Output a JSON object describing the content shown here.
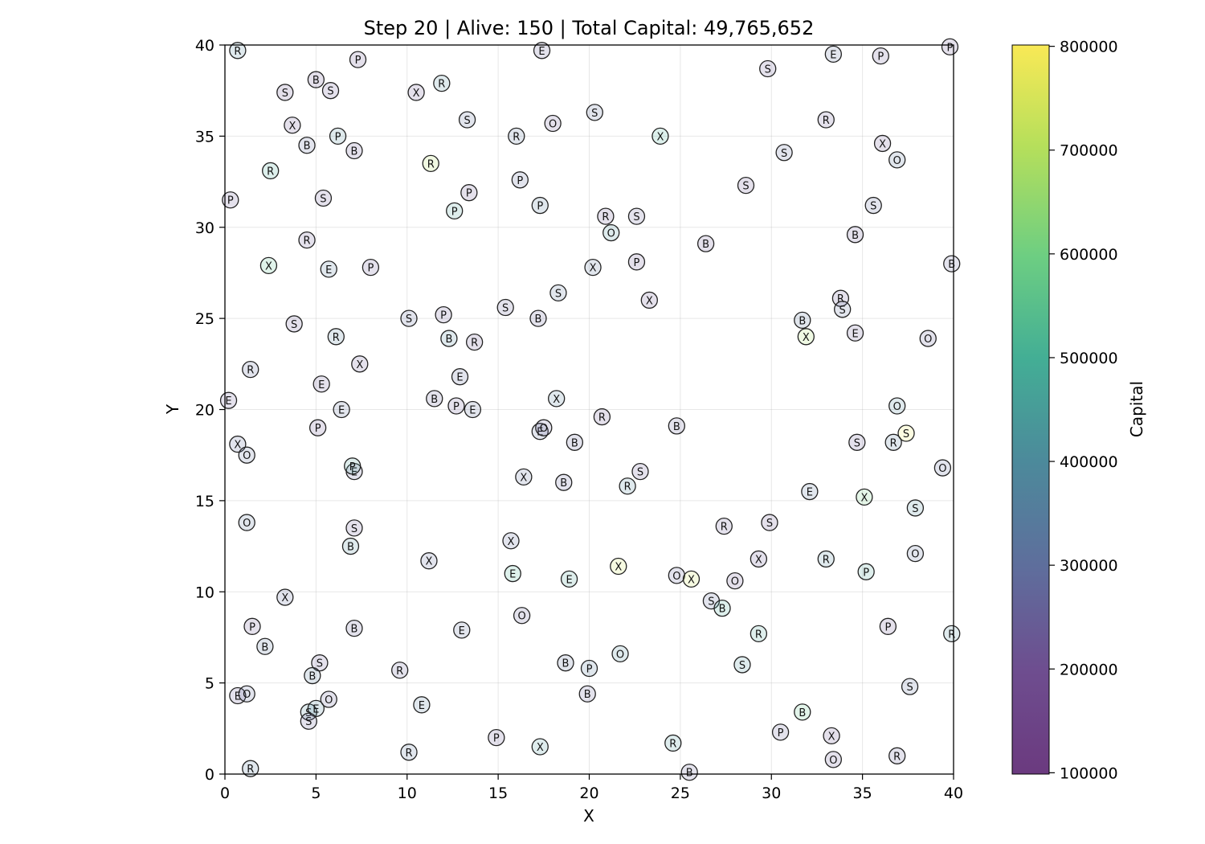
{
  "chart_data": {
    "type": "scatter",
    "title": "Step 20 | Alive: 150 | Total Capital: 49,765,652",
    "xlabel": "X",
    "ylabel": "Y",
    "xlim": [
      0,
      40
    ],
    "ylim": [
      0,
      40
    ],
    "x_ticks": [
      "0",
      "5",
      "10",
      "15",
      "20",
      "25",
      "30",
      "35",
      "40"
    ],
    "y_ticks": [
      "0",
      "5",
      "10",
      "15",
      "20",
      "25",
      "30",
      "35",
      "40"
    ],
    "grid": true,
    "colorbar": {
      "label": "Capital",
      "colormap": "viridis",
      "range": [
        100000,
        800000
      ],
      "ticks": [
        "100000",
        "200000",
        "300000",
        "400000",
        "500000",
        "600000",
        "700000",
        "800000"
      ]
    },
    "points": [
      {
        "x": 0.7,
        "y": 39.7,
        "label": "R",
        "capital": 390000
      },
      {
        "x": 7.3,
        "y": 39.2,
        "label": "P",
        "capital": 220000
      },
      {
        "x": 5.0,
        "y": 38.1,
        "label": "B",
        "capital": 220000
      },
      {
        "x": 5.8,
        "y": 37.5,
        "label": "S",
        "capital": 240000
      },
      {
        "x": 3.3,
        "y": 37.4,
        "label": "S",
        "capital": 210000
      },
      {
        "x": 10.5,
        "y": 37.4,
        "label": "X",
        "capital": 210000
      },
      {
        "x": 11.9,
        "y": 37.9,
        "label": "R",
        "capital": 400000
      },
      {
        "x": 17.4,
        "y": 39.7,
        "label": "E",
        "capital": 250000
      },
      {
        "x": 36.0,
        "y": 39.4,
        "label": "P",
        "capital": 230000
      },
      {
        "x": 33.4,
        "y": 39.5,
        "label": "E",
        "capital": 300000
      },
      {
        "x": 29.8,
        "y": 38.7,
        "label": "S",
        "capital": 230000
      },
      {
        "x": 39.8,
        "y": 39.9,
        "label": "P",
        "capital": 220000
      },
      {
        "x": 3.7,
        "y": 35.6,
        "label": "X",
        "capital": 220000
      },
      {
        "x": 4.5,
        "y": 34.5,
        "label": "B",
        "capital": 280000
      },
      {
        "x": 6.2,
        "y": 35.0,
        "label": "P",
        "capital": 400000
      },
      {
        "x": 7.1,
        "y": 34.2,
        "label": "B",
        "capital": 240000
      },
      {
        "x": 13.3,
        "y": 35.9,
        "label": "S",
        "capital": 300000
      },
      {
        "x": 16.0,
        "y": 35.0,
        "label": "R",
        "capital": 330000
      },
      {
        "x": 18.0,
        "y": 35.7,
        "label": "O",
        "capital": 230000
      },
      {
        "x": 20.3,
        "y": 36.3,
        "label": "S",
        "capital": 300000
      },
      {
        "x": 23.9,
        "y": 35.0,
        "label": "X",
        "capital": 500000
      },
      {
        "x": 33.0,
        "y": 35.9,
        "label": "R",
        "capital": 230000
      },
      {
        "x": 36.1,
        "y": 34.6,
        "label": "X",
        "capital": 220000
      },
      {
        "x": 36.9,
        "y": 33.7,
        "label": "O",
        "capital": 330000
      },
      {
        "x": 30.7,
        "y": 34.1,
        "label": "S",
        "capital": 280000
      },
      {
        "x": 2.5,
        "y": 33.1,
        "label": "R",
        "capital": 480000
      },
      {
        "x": 11.3,
        "y": 33.5,
        "label": "R",
        "capital": 700000
      },
      {
        "x": 0.3,
        "y": 31.5,
        "label": "P",
        "capital": 230000
      },
      {
        "x": 5.4,
        "y": 31.6,
        "label": "S",
        "capital": 240000
      },
      {
        "x": 13.4,
        "y": 31.9,
        "label": "P",
        "capital": 220000
      },
      {
        "x": 12.6,
        "y": 30.9,
        "label": "P",
        "capital": 450000
      },
      {
        "x": 16.2,
        "y": 32.6,
        "label": "P",
        "capital": 280000
      },
      {
        "x": 17.3,
        "y": 31.2,
        "label": "P",
        "capital": 350000
      },
      {
        "x": 28.6,
        "y": 32.3,
        "label": "S",
        "capital": 220000
      },
      {
        "x": 35.6,
        "y": 31.2,
        "label": "S",
        "capital": 280000
      },
      {
        "x": 20.9,
        "y": 30.6,
        "label": "R",
        "capital": 220000
      },
      {
        "x": 22.6,
        "y": 30.6,
        "label": "S",
        "capital": 250000
      },
      {
        "x": 21.2,
        "y": 29.7,
        "label": "O",
        "capital": 420000
      },
      {
        "x": 4.5,
        "y": 29.3,
        "label": "R",
        "capital": 230000
      },
      {
        "x": 26.4,
        "y": 29.1,
        "label": "B",
        "capital": 210000
      },
      {
        "x": 34.6,
        "y": 29.6,
        "label": "B",
        "capital": 240000
      },
      {
        "x": 39.9,
        "y": 28.0,
        "label": "B",
        "capital": 270000
      },
      {
        "x": 2.4,
        "y": 27.9,
        "label": "X",
        "capital": 540000
      },
      {
        "x": 5.7,
        "y": 27.7,
        "label": "E",
        "capital": 350000
      },
      {
        "x": 8.0,
        "y": 27.8,
        "label": "P",
        "capital": 240000
      },
      {
        "x": 20.2,
        "y": 27.8,
        "label": "X",
        "capital": 330000
      },
      {
        "x": 22.6,
        "y": 28.1,
        "label": "P",
        "capital": 220000
      },
      {
        "x": 18.3,
        "y": 26.4,
        "label": "S",
        "capital": 320000
      },
      {
        "x": 23.3,
        "y": 26.0,
        "label": "X",
        "capital": 220000
      },
      {
        "x": 15.4,
        "y": 25.6,
        "label": "S",
        "capital": 250000
      },
      {
        "x": 17.2,
        "y": 25.0,
        "label": "B",
        "capital": 260000
      },
      {
        "x": 10.1,
        "y": 25.0,
        "label": "S",
        "capital": 280000
      },
      {
        "x": 12.0,
        "y": 25.2,
        "label": "P",
        "capital": 230000
      },
      {
        "x": 3.8,
        "y": 24.7,
        "label": "S",
        "capital": 230000
      },
      {
        "x": 6.1,
        "y": 24.0,
        "label": "R",
        "capital": 370000
      },
      {
        "x": 12.3,
        "y": 23.9,
        "label": "B",
        "capital": 390000
      },
      {
        "x": 13.7,
        "y": 23.7,
        "label": "R",
        "capital": 210000
      },
      {
        "x": 33.8,
        "y": 26.1,
        "label": "R",
        "capital": 240000
      },
      {
        "x": 33.9,
        "y": 25.5,
        "label": "S",
        "capital": 300000
      },
      {
        "x": 31.7,
        "y": 24.9,
        "label": "B",
        "capital": 320000
      },
      {
        "x": 31.9,
        "y": 24.0,
        "label": "X",
        "capital": 680000
      },
      {
        "x": 34.6,
        "y": 24.2,
        "label": "E",
        "capital": 230000
      },
      {
        "x": 38.6,
        "y": 23.9,
        "label": "O",
        "capital": 260000
      },
      {
        "x": 1.4,
        "y": 22.2,
        "label": "R",
        "capital": 280000
      },
      {
        "x": 7.4,
        "y": 22.5,
        "label": "X",
        "capital": 230000
      },
      {
        "x": 5.3,
        "y": 21.4,
        "label": "E",
        "capital": 230000
      },
      {
        "x": 12.9,
        "y": 21.8,
        "label": "E",
        "capital": 280000
      },
      {
        "x": 0.2,
        "y": 20.5,
        "label": "E",
        "capital": 230000
      },
      {
        "x": 6.4,
        "y": 20.0,
        "label": "E",
        "capital": 300000
      },
      {
        "x": 11.5,
        "y": 20.6,
        "label": "B",
        "capital": 250000
      },
      {
        "x": 12.7,
        "y": 20.2,
        "label": "P",
        "capital": 230000
      },
      {
        "x": 13.6,
        "y": 20.0,
        "label": "E",
        "capital": 300000
      },
      {
        "x": 18.2,
        "y": 20.6,
        "label": "X",
        "capital": 360000
      },
      {
        "x": 20.7,
        "y": 19.6,
        "label": "R",
        "capital": 220000
      },
      {
        "x": 5.1,
        "y": 19.0,
        "label": "P",
        "capital": 220000
      },
      {
        "x": 17.3,
        "y": 18.8,
        "label": "E",
        "capital": 310000
      },
      {
        "x": 17.5,
        "y": 19.0,
        "label": "O",
        "capital": 250000
      },
      {
        "x": 19.2,
        "y": 18.2,
        "label": "B",
        "capital": 270000
      },
      {
        "x": 24.8,
        "y": 19.1,
        "label": "B",
        "capital": 250000
      },
      {
        "x": 36.9,
        "y": 20.2,
        "label": "O",
        "capital": 390000
      },
      {
        "x": 0.7,
        "y": 18.1,
        "label": "X",
        "capital": 280000
      },
      {
        "x": 1.2,
        "y": 17.5,
        "label": "O",
        "capital": 300000
      },
      {
        "x": 34.7,
        "y": 18.2,
        "label": "S",
        "capital": 230000
      },
      {
        "x": 36.7,
        "y": 18.2,
        "label": "R",
        "capital": 350000
      },
      {
        "x": 37.4,
        "y": 18.7,
        "label": "S",
        "capital": 780000
      },
      {
        "x": 39.4,
        "y": 16.8,
        "label": "O",
        "capital": 280000
      },
      {
        "x": 7.1,
        "y": 16.6,
        "label": "E",
        "capital": 250000
      },
      {
        "x": 7.0,
        "y": 16.9,
        "label": "P",
        "capital": 450000
      },
      {
        "x": 16.4,
        "y": 16.3,
        "label": "X",
        "capital": 300000
      },
      {
        "x": 18.6,
        "y": 16.0,
        "label": "B",
        "capital": 270000
      },
      {
        "x": 22.8,
        "y": 16.6,
        "label": "S",
        "capital": 230000
      },
      {
        "x": 22.1,
        "y": 15.8,
        "label": "R",
        "capital": 380000
      },
      {
        "x": 32.1,
        "y": 15.5,
        "label": "E",
        "capital": 330000
      },
      {
        "x": 35.1,
        "y": 15.2,
        "label": "X",
        "capital": 600000
      },
      {
        "x": 37.9,
        "y": 14.6,
        "label": "S",
        "capital": 400000
      },
      {
        "x": 1.2,
        "y": 13.8,
        "label": "O",
        "capital": 330000
      },
      {
        "x": 7.1,
        "y": 13.5,
        "label": "S",
        "capital": 230000
      },
      {
        "x": 27.4,
        "y": 13.6,
        "label": "R",
        "capital": 240000
      },
      {
        "x": 29.9,
        "y": 13.8,
        "label": "S",
        "capital": 220000
      },
      {
        "x": 6.9,
        "y": 12.5,
        "label": "B",
        "capital": 400000
      },
      {
        "x": 15.7,
        "y": 12.8,
        "label": "X",
        "capital": 290000
      },
      {
        "x": 11.2,
        "y": 11.7,
        "label": "X",
        "capital": 280000
      },
      {
        "x": 29.3,
        "y": 11.8,
        "label": "X",
        "capital": 230000
      },
      {
        "x": 33.0,
        "y": 11.8,
        "label": "R",
        "capital": 380000
      },
      {
        "x": 37.9,
        "y": 12.1,
        "label": "O",
        "capital": 300000
      },
      {
        "x": 35.2,
        "y": 11.1,
        "label": "P",
        "capital": 470000
      },
      {
        "x": 15.8,
        "y": 11.0,
        "label": "E",
        "capital": 510000
      },
      {
        "x": 18.9,
        "y": 10.7,
        "label": "E",
        "capital": 470000
      },
      {
        "x": 21.6,
        "y": 11.4,
        "label": "X",
        "capital": 740000
      },
      {
        "x": 24.8,
        "y": 10.9,
        "label": "O",
        "capital": 270000
      },
      {
        "x": 25.6,
        "y": 10.7,
        "label": "X",
        "capital": 740000
      },
      {
        "x": 28.0,
        "y": 10.6,
        "label": "O",
        "capital": 220000
      },
      {
        "x": 3.3,
        "y": 9.7,
        "label": "X",
        "capital": 280000
      },
      {
        "x": 26.7,
        "y": 9.5,
        "label": "S",
        "capital": 280000
      },
      {
        "x": 27.3,
        "y": 9.1,
        "label": "B",
        "capital": 480000
      },
      {
        "x": 1.5,
        "y": 8.1,
        "label": "P",
        "capital": 220000
      },
      {
        "x": 16.3,
        "y": 8.7,
        "label": "O",
        "capital": 250000
      },
      {
        "x": 7.1,
        "y": 8.0,
        "label": "B",
        "capital": 250000
      },
      {
        "x": 13.0,
        "y": 7.9,
        "label": "E",
        "capital": 310000
      },
      {
        "x": 29.3,
        "y": 7.7,
        "label": "R",
        "capital": 460000
      },
      {
        "x": 36.4,
        "y": 8.1,
        "label": "P",
        "capital": 220000
      },
      {
        "x": 39.9,
        "y": 7.7,
        "label": "R",
        "capital": 400000
      },
      {
        "x": 2.2,
        "y": 7.0,
        "label": "B",
        "capital": 320000
      },
      {
        "x": 21.7,
        "y": 6.6,
        "label": "O",
        "capital": 400000
      },
      {
        "x": 5.2,
        "y": 6.1,
        "label": "S",
        "capital": 240000
      },
      {
        "x": 18.7,
        "y": 6.1,
        "label": "B",
        "capital": 310000
      },
      {
        "x": 20.0,
        "y": 5.8,
        "label": "P",
        "capital": 350000
      },
      {
        "x": 9.6,
        "y": 5.7,
        "label": "R",
        "capital": 250000
      },
      {
        "x": 28.4,
        "y": 6.0,
        "label": "S",
        "capital": 420000
      },
      {
        "x": 4.8,
        "y": 5.4,
        "label": "B",
        "capital": 350000
      },
      {
        "x": 37.6,
        "y": 4.8,
        "label": "S",
        "capital": 300000
      },
      {
        "x": 0.7,
        "y": 4.3,
        "label": "E",
        "capital": 240000
      },
      {
        "x": 1.2,
        "y": 4.4,
        "label": "O",
        "capital": 280000
      },
      {
        "x": 19.9,
        "y": 4.4,
        "label": "B",
        "capital": 250000
      },
      {
        "x": 5.7,
        "y": 4.1,
        "label": "O",
        "capital": 260000
      },
      {
        "x": 10.8,
        "y": 3.8,
        "label": "E",
        "capital": 350000
      },
      {
        "x": 4.6,
        "y": 3.4,
        "label": "S",
        "capital": 400000
      },
      {
        "x": 5.0,
        "y": 3.6,
        "label": "E",
        "capital": 390000
      },
      {
        "x": 31.7,
        "y": 3.4,
        "label": "B",
        "capital": 560000
      },
      {
        "x": 4.6,
        "y": 2.9,
        "label": "S",
        "capital": 250000
      },
      {
        "x": 30.5,
        "y": 2.3,
        "label": "P",
        "capital": 250000
      },
      {
        "x": 33.3,
        "y": 2.1,
        "label": "X",
        "capital": 220000
      },
      {
        "x": 14.9,
        "y": 2.0,
        "label": "P",
        "capital": 230000
      },
      {
        "x": 24.6,
        "y": 1.7,
        "label": "R",
        "capital": 430000
      },
      {
        "x": 17.3,
        "y": 1.5,
        "label": "X",
        "capital": 430000
      },
      {
        "x": 10.1,
        "y": 1.2,
        "label": "R",
        "capital": 330000
      },
      {
        "x": 36.9,
        "y": 1.0,
        "label": "R",
        "capital": 250000
      },
      {
        "x": 33.4,
        "y": 0.8,
        "label": "O",
        "capital": 230000
      },
      {
        "x": 1.4,
        "y": 0.3,
        "label": "R",
        "capital": 350000
      },
      {
        "x": 25.5,
        "y": 0.1,
        "label": "B",
        "capital": 250000
      }
    ]
  }
}
